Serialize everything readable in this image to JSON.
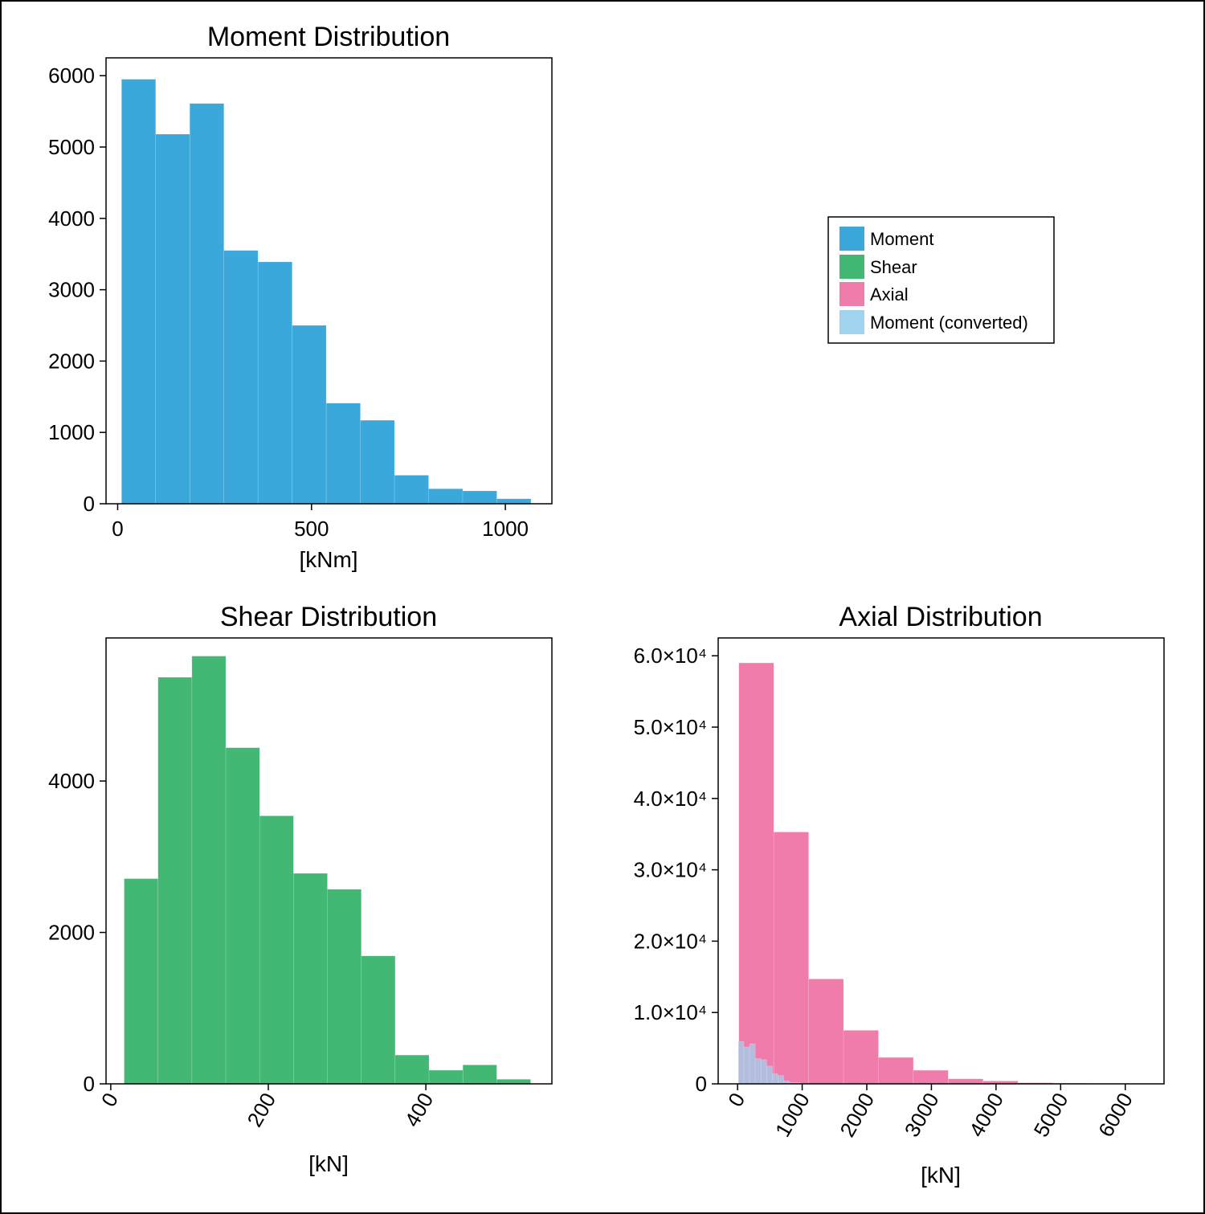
{
  "colors": {
    "moment": "#3ba8dc",
    "shear": "#42b874",
    "axial": "#f07cac",
    "moment_converted": "#9fd3ee"
  },
  "legend": {
    "placement": "top-right panel",
    "entries": [
      {
        "label": "Moment",
        "color": "#3ba8dc"
      },
      {
        "label": "Shear",
        "color": "#42b874"
      },
      {
        "label": "Axial",
        "color": "#f07cac"
      },
      {
        "label": "Moment (converted)",
        "color": "#9fd3ee"
      }
    ]
  },
  "chart_data": [
    {
      "type": "bar",
      "title": "Moment Distribution",
      "xlabel": "[kNm]",
      "ylabel": "",
      "xlim": [
        -30,
        1120
      ],
      "ylim": [
        0,
        6250
      ],
      "xticks": [
        0,
        500,
        1000
      ],
      "xtick_labels": [
        "0",
        "500",
        "1000"
      ],
      "xtick_rotation": 0,
      "yticks": [
        0,
        1000,
        2000,
        3000,
        4000,
        5000,
        6000
      ],
      "ytick_labels": [
        "0",
        "1000",
        "2000",
        "3000",
        "4000",
        "5000",
        "6000"
      ],
      "series": [
        {
          "name": "Moment",
          "color": "#3ba8dc",
          "bin_edges": [
            10,
            98,
            186,
            274,
            362,
            450,
            538,
            626,
            714,
            802,
            890,
            978,
            1066
          ],
          "values": [
            5950,
            5180,
            5610,
            3550,
            3390,
            2500,
            1410,
            1170,
            400,
            210,
            180,
            70
          ]
        }
      ]
    },
    {
      "type": "bar",
      "title": "Shear Distribution",
      "xlabel": "[kN]",
      "ylabel": "",
      "xlim": [
        -6,
        560
      ],
      "ylim": [
        0,
        5890
      ],
      "xticks": [
        0,
        200,
        400
      ],
      "xtick_labels": [
        "0",
        "200",
        "400"
      ],
      "xtick_rotation": -60,
      "yticks": [
        0,
        2000,
        4000
      ],
      "ytick_labels": [
        "0",
        "2000",
        "4000"
      ],
      "series": [
        {
          "name": "Shear",
          "color": "#42b874",
          "bin_edges": [
            17,
            60,
            103,
            146,
            189,
            232,
            275,
            318,
            361,
            404,
            447,
            490,
            533
          ],
          "values": [
            2710,
            5370,
            5650,
            4440,
            3540,
            2780,
            2570,
            1690,
            380,
            180,
            250,
            60
          ]
        }
      ]
    },
    {
      "type": "bar",
      "title": "Axial Distribution",
      "xlabel": "[kN]",
      "ylabel": "",
      "xlim": [
        -300,
        6600
      ],
      "ylim": [
        0,
        62500
      ],
      "xticks": [
        0,
        1000,
        2000,
        3000,
        4000,
        5000,
        6000
      ],
      "xtick_labels": [
        "0",
        "1000",
        "2000",
        "3000",
        "4000",
        "5000",
        "6000"
      ],
      "xtick_rotation": -60,
      "yticks": [
        0,
        10000,
        20000,
        30000,
        40000,
        50000,
        60000
      ],
      "ytick_labels": [
        "0",
        "1.0×10⁴",
        "2.0×10⁴",
        "3.0×10⁴",
        "4.0×10⁴",
        "5.0×10⁴",
        "6.0×10⁴"
      ],
      "series": [
        {
          "name": "Axial",
          "color": "#f07cac",
          "bin_edges": [
            20,
            560,
            1100,
            1640,
            2180,
            2720,
            3260,
            3800,
            4340,
            4880,
            5420,
            5960,
            6500
          ],
          "values": [
            59000,
            35300,
            14700,
            7500,
            3700,
            1900,
            700,
            400,
            150,
            80,
            40,
            20
          ]
        },
        {
          "name": "Moment (converted)",
          "color": "#9fd3ee",
          "opacity": 0.75,
          "bin_edges": [
            10,
            98,
            186,
            274,
            362,
            450,
            538,
            626,
            714,
            802,
            890,
            978,
            1066
          ],
          "values": [
            5950,
            5180,
            5610,
            3550,
            3390,
            2500,
            1410,
            1170,
            400,
            210,
            180,
            70
          ]
        }
      ]
    }
  ]
}
